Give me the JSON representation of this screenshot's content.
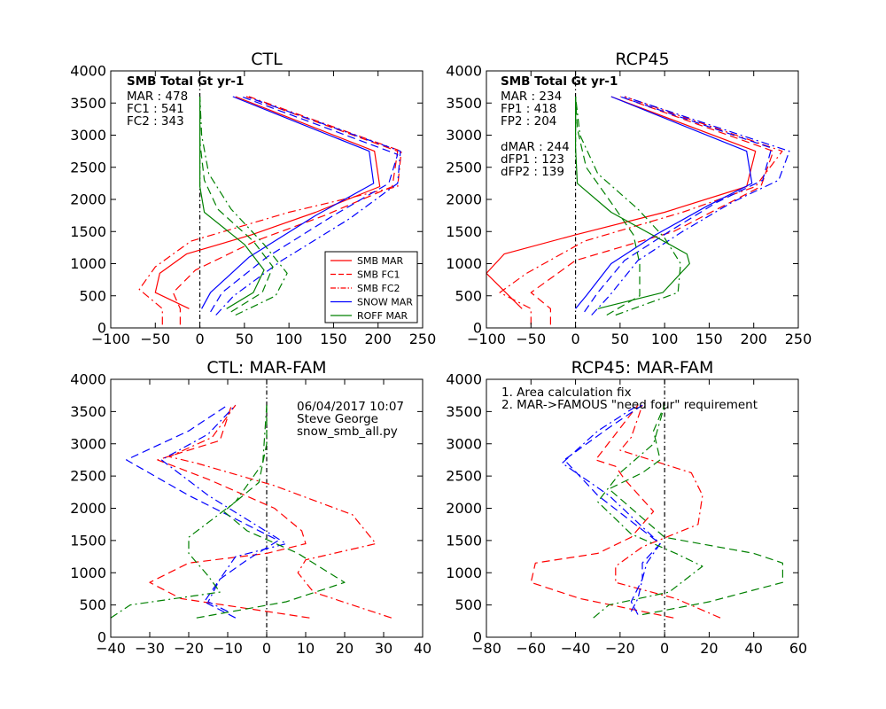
{
  "chart_data": [
    {
      "type": "line",
      "title": "CTL",
      "xlim": [
        -100,
        250
      ],
      "ylim": [
        0,
        4000
      ],
      "xticks": [
        "−100",
        "−50",
        "0",
        "50",
        "100",
        "150",
        "200",
        "250"
      ],
      "yticks": [
        "0",
        "500",
        "1000",
        "1500",
        "2000",
        "2500",
        "3000",
        "3500",
        "4000"
      ],
      "annotations": [
        "SMB Total Gt yr-1",
        "MAR : 478",
        "FC1 : 541",
        "FC2 : 343"
      ],
      "legend": {
        "placement": "lower-right",
        "entries": [
          {
            "label": "SMB MAR",
            "color": "#ff0000",
            "style": "solid"
          },
          {
            "label": "SMB FC1",
            "color": "#ff0000",
            "style": "dashed"
          },
          {
            "label": "SMB FC2",
            "color": "#ff0000",
            "style": "dashdot"
          },
          {
            "label": "SNOW MAR",
            "color": "#0000ff",
            "style": "solid"
          },
          {
            "label": "ROFF MAR",
            "color": "#008000",
            "style": "solid"
          }
        ]
      },
      "series": [
        {
          "color": "#ff0000",
          "style": "solid",
          "x": [
            -12,
            -50,
            -45,
            -15,
            58,
            130,
            202,
            196,
            40
          ],
          "y": [
            300,
            550,
            850,
            1150,
            1450,
            1800,
            2200,
            2750,
            3600
          ]
        },
        {
          "color": "#ff0000",
          "style": "dashed",
          "x": [
            -22,
            -22,
            -30,
            -5,
            62,
            140,
            216,
            222,
            52
          ],
          "y": [
            50,
            300,
            550,
            900,
            1350,
            1750,
            2200,
            2750,
            3600
          ]
        },
        {
          "color": "#ff0000",
          "style": "dashdot",
          "x": [
            -42,
            -42,
            -68,
            -50,
            -10,
            100,
            222,
            226,
            55
          ],
          "y": [
            50,
            300,
            600,
            950,
            1350,
            1800,
            2200,
            2750,
            3600
          ]
        },
        {
          "color": "#0000ff",
          "style": "solid",
          "x": [
            2,
            12,
            55,
            130,
            195,
            190,
            37
          ],
          "y": [
            300,
            550,
            1100,
            1750,
            2250,
            2750,
            3600
          ]
        },
        {
          "color": "#0000ff",
          "style": "dashed",
          "x": [
            12,
            25,
            75,
            150,
            212,
            222,
            47
          ],
          "y": [
            250,
            550,
            1100,
            1750,
            2250,
            2700,
            3600
          ]
        },
        {
          "color": "#0000ff",
          "style": "dashdot",
          "x": [
            18,
            38,
            92,
            168,
            222,
            225,
            52
          ],
          "y": [
            200,
            500,
            1050,
            1700,
            2250,
            2750,
            3600
          ]
        },
        {
          "color": "#008000",
          "style": "solid",
          "x": [
            30,
            60,
            72,
            50,
            5,
            0,
            0,
            0
          ],
          "y": [
            300,
            550,
            900,
            1300,
            1800,
            2200,
            2800,
            3600
          ]
        },
        {
          "color": "#008000",
          "style": "dashed",
          "x": [
            35,
            70,
            82,
            60,
            20,
            5,
            0,
            0
          ],
          "y": [
            250,
            550,
            950,
            1350,
            1850,
            2300,
            2900,
            3600
          ]
        },
        {
          "color": "#008000",
          "style": "dashdot",
          "x": [
            40,
            85,
            98,
            72,
            35,
            10,
            2,
            0
          ],
          "y": [
            200,
            500,
            850,
            1300,
            1850,
            2400,
            3000,
            3600
          ]
        }
      ]
    },
    {
      "type": "line",
      "title": "RCP45",
      "xlim": [
        -100,
        250
      ],
      "ylim": [
        0,
        4000
      ],
      "xticks": [
        "−100",
        "−50",
        "0",
        "50",
        "100",
        "150",
        "200",
        "250"
      ],
      "yticks": [
        "0",
        "500",
        "1000",
        "1500",
        "2000",
        "2500",
        "3000",
        "3500",
        "4000"
      ],
      "annotations": [
        "SMB Total Gt yr-1",
        "MAR : 234",
        "FP1 : 418",
        "FP2 : 204",
        "dMAR : 244",
        "dFP1 : 123",
        "dFP2 : 139"
      ],
      "series": [
        {
          "color": "#ff0000",
          "style": "solid",
          "x": [
            -60,
            -100,
            -80,
            0,
            100,
            192,
            202,
            40
          ],
          "y": [
            300,
            850,
            1150,
            1450,
            1800,
            2200,
            2750,
            3600
          ]
        },
        {
          "color": "#ff0000",
          "style": "dashed",
          "x": [
            -28,
            -28,
            -50,
            0,
            110,
            208,
            222,
            50
          ],
          "y": [
            50,
            300,
            550,
            1050,
            1500,
            2200,
            2750,
            3600
          ]
        },
        {
          "color": "#ff0000",
          "style": "dashdot",
          "x": [
            -50,
            -50,
            -85,
            -55,
            10,
            120,
            202,
            232,
            55
          ],
          "y": [
            50,
            300,
            550,
            850,
            1350,
            1800,
            2200,
            2750,
            3600
          ]
        },
        {
          "color": "#0000ff",
          "style": "solid",
          "x": [
            0,
            12,
            40,
            90,
            148,
            198,
            192,
            40
          ],
          "y": [
            300,
            500,
            1000,
            1450,
            1900,
            2250,
            2750,
            3600
          ]
        },
        {
          "color": "#0000ff",
          "style": "dashed",
          "x": [
            10,
            25,
            55,
            105,
            158,
            210,
            220,
            50
          ],
          "y": [
            250,
            550,
            1050,
            1500,
            1950,
            2300,
            2800,
            3600
          ]
        },
        {
          "color": "#0000ff",
          "style": "dashdot",
          "x": [
            18,
            38,
            70,
            120,
            175,
            228,
            240,
            55
          ],
          "y": [
            200,
            500,
            1050,
            1500,
            1950,
            2300,
            2750,
            3600
          ]
        },
        {
          "color": "#008000",
          "style": "solid",
          "x": [
            25,
            98,
            128,
            125,
            40,
            2,
            0,
            0
          ],
          "y": [
            300,
            550,
            1000,
            1150,
            1800,
            2250,
            2800,
            3600
          ]
        },
        {
          "color": "#008000",
          "style": "dashed",
          "x": [
            35,
            72,
            72,
            65,
            40,
            12,
            2,
            0
          ],
          "y": [
            200,
            500,
            1000,
            1450,
            1950,
            2500,
            3100,
            3600
          ]
        },
        {
          "color": "#008000",
          "style": "dashdot",
          "x": [
            45,
            115,
            118,
            100,
            70,
            25,
            5,
            0
          ],
          "y": [
            200,
            550,
            1000,
            1400,
            1850,
            2400,
            3000,
            3600
          ]
        }
      ]
    },
    {
      "type": "line",
      "title": "CTL: MAR-FAM",
      "xlim": [
        -40,
        40
      ],
      "ylim": [
        0,
        4000
      ],
      "xticks": [
        "−40",
        "−30",
        "−20",
        "−10",
        "0",
        "10",
        "20",
        "30",
        "40"
      ],
      "yticks": [
        "0",
        "500",
        "1000",
        "1500",
        "2000",
        "2500",
        "3000",
        "3500",
        "4000"
      ],
      "annotations": [
        "06/04/2017 10:07",
        "Steve George",
        "snow_smb_all.py"
      ],
      "series": [
        {
          "color": "#ff0000",
          "style": "dashed",
          "x": [
            11,
            0,
            -22,
            -30,
            -20,
            0,
            10,
            9,
            2,
            -15,
            -28,
            -12,
            -9
          ],
          "y": [
            300,
            400,
            600,
            850,
            1150,
            1300,
            1450,
            1650,
            2000,
            2450,
            2750,
            3050,
            3600
          ]
        },
        {
          "color": "#ff0000",
          "style": "dashdot",
          "x": [
            32,
            12,
            8,
            10,
            28,
            22,
            2,
            -18,
            -25,
            -14,
            -8
          ],
          "y": [
            300,
            700,
            1000,
            1200,
            1450,
            1900,
            2350,
            2700,
            2800,
            3100,
            3600
          ]
        },
        {
          "color": "#0000ff",
          "style": "dashed",
          "x": [
            -8,
            -16,
            -12,
            -5,
            3,
            -20,
            -36,
            -20,
            -10
          ],
          "y": [
            300,
            550,
            900,
            1200,
            1500,
            2200,
            2750,
            3200,
            3600
          ]
        },
        {
          "color": "#0000ff",
          "style": "dashdot",
          "x": [
            -10,
            -15,
            -12,
            -8,
            5,
            -15,
            -27,
            -15,
            -8
          ],
          "y": [
            400,
            550,
            900,
            1250,
            1450,
            2200,
            2750,
            3150,
            3600
          ]
        },
        {
          "color": "#008000",
          "style": "dashed",
          "x": [
            -18,
            5,
            20,
            8,
            -5,
            -11,
            -2,
            0,
            0
          ],
          "y": [
            300,
            550,
            850,
            1300,
            1650,
            1950,
            2400,
            3000,
            3600
          ]
        },
        {
          "color": "#008000",
          "style": "dashdot",
          "x": [
            -40,
            -35,
            -12,
            -15,
            -20,
            -20,
            -8,
            -1,
            0
          ],
          "y": [
            300,
            500,
            700,
            950,
            1300,
            1550,
            2100,
            2700,
            3600
          ]
        }
      ]
    },
    {
      "type": "line",
      "title": "RCP45: MAR-FAM",
      "xlim": [
        -80,
        60
      ],
      "ylim": [
        0,
        4000
      ],
      "xticks": [
        "−80",
        "−60",
        "−40",
        "−20",
        "0",
        "20",
        "40",
        "60"
      ],
      "yticks": [
        "0",
        "500",
        "1000",
        "1500",
        "2000",
        "2500",
        "3000",
        "3500",
        "4000"
      ],
      "annotations": [
        "1. Area calculation fix",
        "2. MAR->FAMOUS \"need four\" requirement"
      ],
      "series": [
        {
          "color": "#ff0000",
          "style": "dashed",
          "x": [
            4,
            -10,
            -38,
            -60,
            -58,
            -30,
            -15,
            -5,
            -18,
            -22,
            -31,
            -12
          ],
          "y": [
            300,
            400,
            600,
            850,
            1150,
            1300,
            1550,
            1950,
            2450,
            2650,
            2750,
            3600
          ]
        },
        {
          "color": "#ff0000",
          "style": "dashdot",
          "x": [
            25,
            5,
            -22,
            -22,
            -10,
            15,
            17,
            12,
            -20,
            -15,
            -10
          ],
          "y": [
            300,
            600,
            850,
            1100,
            1400,
            1750,
            2200,
            2550,
            2900,
            3100,
            3600
          ]
        },
        {
          "color": "#0000ff",
          "style": "dashed",
          "x": [
            -12,
            -15,
            -10,
            -10,
            -2,
            -30,
            -45,
            -25,
            -10
          ],
          "y": [
            350,
            550,
            900,
            1150,
            1450,
            2200,
            2750,
            3250,
            3600
          ]
        },
        {
          "color": "#0000ff",
          "style": "dashdot",
          "x": [
            -15,
            -12,
            -10,
            -8,
            -2,
            -25,
            -46,
            -30,
            -12
          ],
          "y": [
            400,
            600,
            900,
            1150,
            1450,
            2200,
            2700,
            3200,
            3600
          ]
        },
        {
          "color": "#008000",
          "style": "dashed",
          "x": [
            -10,
            20,
            53,
            53,
            40,
            0,
            -25,
            -10,
            -2,
            -5,
            0
          ],
          "y": [
            350,
            550,
            850,
            1150,
            1300,
            1550,
            2300,
            2550,
            2750,
            3200,
            3600
          ]
        },
        {
          "color": "#008000",
          "style": "dashdot",
          "x": [
            -32,
            -25,
            2,
            17,
            5,
            -15,
            -30,
            -20,
            -5,
            0
          ],
          "y": [
            300,
            500,
            700,
            1100,
            1300,
            1600,
            2100,
            2550,
            3000,
            3600
          ]
        }
      ]
    }
  ]
}
